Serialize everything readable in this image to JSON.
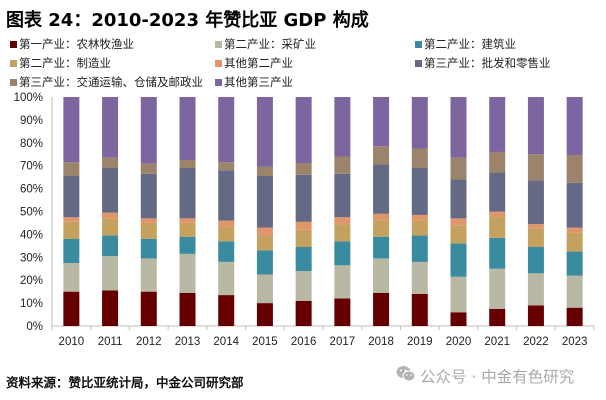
{
  "title": "图表 24：2010-2023 年赞比亚 GDP 构成",
  "footer": {
    "source": "资料来源：赞比亚统计局，中金公司研究部",
    "watermark": "公众号 · 中金有色研究",
    "watermark_icon": "wechat-icon"
  },
  "chart_data": {
    "type": "bar",
    "stacked": true,
    "percent": true,
    "title": "图表 24：2010-2023 年赞比亚 GDP 构成",
    "xlabel": "",
    "ylabel": "",
    "ylim": [
      0,
      100
    ],
    "yticks": [
      "0%",
      "10%",
      "20%",
      "30%",
      "40%",
      "50%",
      "60%",
      "70%",
      "80%",
      "90%",
      "100%"
    ],
    "grid": false,
    "legend_position": "top",
    "categories": [
      "2010",
      "2011",
      "2012",
      "2013",
      "2014",
      "2015",
      "2016",
      "2017",
      "2018",
      "2019",
      "2020",
      "2021",
      "2022",
      "2023"
    ],
    "series": [
      {
        "name": "第一产业：农林牧渔业",
        "color": "#660000",
        "values": [
          15,
          15.5,
          15,
          14.5,
          13.5,
          10,
          11,
          12,
          14.5,
          14,
          6,
          7.5,
          9,
          8
        ]
      },
      {
        "name": "第二产业：采矿业",
        "color": "#b9b8a5",
        "values": [
          12.5,
          15,
          14.5,
          17,
          14.5,
          12.5,
          13,
          14.5,
          15,
          14,
          15.5,
          17.5,
          14,
          14
        ]
      },
      {
        "name": "第二产业：建筑业",
        "color": "#3a8ba0",
        "values": [
          10.5,
          9,
          8.5,
          7.5,
          9,
          10.5,
          10.5,
          10.5,
          9.5,
          11.5,
          14.5,
          13.5,
          11.5,
          10.5
        ]
      },
      {
        "name": "第二产业：制造业",
        "color": "#c4a15e",
        "values": [
          7.5,
          7.5,
          7,
          6,
          6.5,
          6.5,
          7.5,
          7.5,
          7,
          6.5,
          8,
          9.5,
          8,
          8.5
        ]
      },
      {
        "name": "其他第二产业",
        "color": "#e0956a",
        "values": [
          2,
          2.5,
          2,
          2,
          2.5,
          3.5,
          3.5,
          3,
          3,
          2.5,
          3,
          2,
          2,
          2
        ]
      },
      {
        "name": "第三产业：批发和零售业",
        "color": "#646a84",
        "values": [
          18,
          19.5,
          19.5,
          22,
          22,
          22.5,
          20.5,
          19,
          21.5,
          20.5,
          17,
          17,
          19,
          19.5
        ]
      },
      {
        "name": "第三产业：交通运输、仓储及邮政业",
        "color": "#9c846c",
        "values": [
          6,
          4.5,
          4.5,
          3.5,
          3.5,
          4,
          5,
          7.5,
          8,
          8.5,
          9.5,
          9,
          11.5,
          12
        ]
      },
      {
        "name": "其他第三产业",
        "color": "#7d65a0",
        "values": [
          28.5,
          26.5,
          29,
          27.5,
          28.5,
          30.5,
          29,
          26,
          21.5,
          22.5,
          26.5,
          24,
          25,
          25.5
        ]
      }
    ]
  }
}
